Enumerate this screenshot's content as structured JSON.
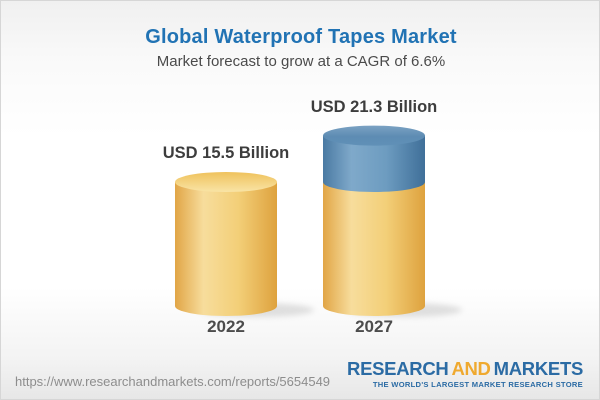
{
  "header": {
    "title": "Global Waterproof Tapes Market",
    "subtitle": "Market forecast to grow at a CAGR of 6.6%"
  },
  "chart_data": {
    "type": "bar",
    "title": "Global Waterproof Tapes Market",
    "subtitle": "Market forecast to grow at a CAGR of 6.6%",
    "unit": "USD Billion",
    "cagr_percent": 6.6,
    "categories": [
      "2022",
      "2027"
    ],
    "values": [
      15.5,
      21.3
    ],
    "bars": [
      {
        "year": "2022",
        "value": 15.5,
        "value_label": "USD 15.5 Billion",
        "segments": [
          {
            "name": "market-2022",
            "value": 15.5,
            "color": "yellow"
          }
        ]
      },
      {
        "year": "2027",
        "value": 21.3,
        "value_label": "USD 21.3 Billion",
        "segments": [
          {
            "name": "base-2022-level",
            "value": 15.5,
            "color": "yellow"
          },
          {
            "name": "forecast-growth",
            "value": 5.8,
            "color": "blue"
          }
        ]
      }
    ],
    "legend": "none",
    "grid": false
  },
  "footer": {
    "url": "https://www.researchandmarkets.com/reports/5654549",
    "logo": {
      "word1": "RESEARCH",
      "word2": "AND",
      "word3": "MARKETS",
      "tagline": "THE WORLD'S LARGEST MARKET RESEARCH STORE"
    }
  },
  "colors": {
    "title_blue": "#2173B4",
    "bar_yellow": "#F2C96B",
    "bar_blue": "#5D8CB3",
    "logo_blue": "#2B6BA4",
    "logo_gold": "#EFA92F",
    "text_dark": "#3D3D3D",
    "url_gray": "#8D8D8D"
  }
}
